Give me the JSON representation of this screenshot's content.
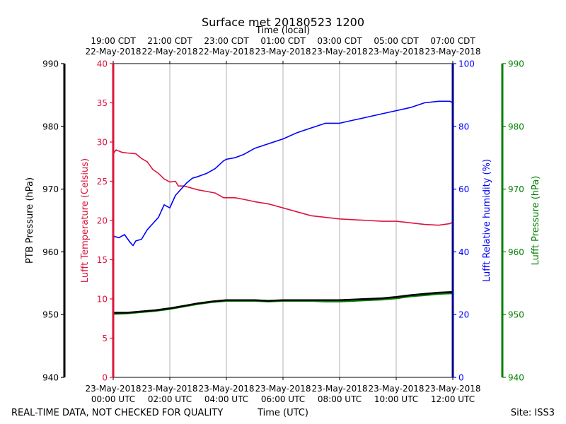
{
  "colors": {
    "temperature": "#dc143c",
    "humidity": "#0000ff",
    "ptb_pressure": "#000000",
    "lufft_pressure": "#008000",
    "grid": "#b0b0b0"
  },
  "chart_data": {
    "type": "line",
    "title": "Surface met 20180523 1200",
    "top_axis_label": "Time (local)",
    "xlabel": "Time (UTC)",
    "footer_left": "REAL-TIME DATA, NOT CHECKED FOR QUALITY",
    "footer_right": "Site: ISS3",
    "xlim_hours": [
      0,
      12
    ],
    "bottom_ticks": [
      {
        "hour": 0,
        "date": "23-May-2018",
        "time": "00:00 UTC"
      },
      {
        "hour": 2,
        "date": "23-May-2018",
        "time": "02:00 UTC"
      },
      {
        "hour": 4,
        "date": "23-May-2018",
        "time": "04:00 UTC"
      },
      {
        "hour": 6,
        "date": "23-May-2018",
        "time": "06:00 UTC"
      },
      {
        "hour": 8,
        "date": "23-May-2018",
        "time": "08:00 UTC"
      },
      {
        "hour": 10,
        "date": "23-May-2018",
        "time": "10:00 UTC"
      },
      {
        "hour": 12,
        "date": "23-May-2018",
        "time": "12:00 UTC"
      }
    ],
    "top_ticks": [
      {
        "hour": 0,
        "time": "19:00 CDT",
        "date": "22-May-2018"
      },
      {
        "hour": 2,
        "time": "21:00 CDT",
        "date": "22-May-2018"
      },
      {
        "hour": 4,
        "time": "23:00 CDT",
        "date": "22-May-2018"
      },
      {
        "hour": 6,
        "time": "01:00 CDT",
        "date": "23-May-2018"
      },
      {
        "hour": 8,
        "time": "03:00 CDT",
        "date": "23-May-2018"
      },
      {
        "hour": 10,
        "time": "05:00 CDT",
        "date": "23-May-2018"
      },
      {
        "hour": 12,
        "time": "07:00 CDT",
        "date": "23-May-2018"
      }
    ],
    "axes": {
      "ptb": {
        "label": "PTB Pressure (hPa)",
        "range": [
          940,
          990
        ],
        "ticks": [
          940,
          950,
          960,
          970,
          980,
          990
        ]
      },
      "temperature": {
        "label": "Lufft Temperature (Celsius)",
        "range": [
          0,
          40
        ],
        "ticks": [
          0,
          5,
          10,
          15,
          20,
          25,
          30,
          35,
          40
        ]
      },
      "humidity": {
        "label": "Lufft Relative humidity (%)",
        "range": [
          0,
          100
        ],
        "ticks": [
          0,
          20,
          40,
          60,
          80,
          100
        ]
      },
      "lufft_pressure": {
        "label": "Lufft Pressure (hPa)",
        "range": [
          940,
          990
        ],
        "ticks": [
          940,
          950,
          960,
          970,
          980,
          990
        ]
      }
    },
    "series": [
      {
        "name": "Lufft Temperature (Celsius)",
        "axis": "temperature",
        "x": [
          0,
          0.1,
          0.3,
          0.5,
          0.8,
          1.0,
          1.2,
          1.4,
          1.6,
          1.8,
          2.0,
          2.2,
          2.3,
          2.5,
          2.8,
          3.0,
          3.3,
          3.6,
          3.9,
          4.0,
          4.3,
          4.6,
          5.0,
          5.5,
          6.0,
          6.5,
          7.0,
          7.5,
          8.0,
          8.5,
          9.0,
          9.5,
          10.0,
          10.5,
          11.0,
          11.5,
          11.9,
          12.0
        ],
        "y": [
          28.5,
          29.0,
          28.7,
          28.6,
          28.5,
          27.9,
          27.5,
          26.5,
          26.0,
          25.3,
          24.9,
          25.0,
          24.4,
          24.4,
          24.1,
          23.9,
          23.7,
          23.5,
          22.9,
          22.9,
          22.9,
          22.7,
          22.4,
          22.1,
          21.6,
          21.1,
          20.6,
          20.4,
          20.2,
          20.1,
          20.0,
          19.9,
          19.9,
          19.7,
          19.5,
          19.4,
          19.6,
          19.8
        ]
      },
      {
        "name": "Lufft Relative humidity (%)",
        "axis": "humidity",
        "x": [
          0,
          0.2,
          0.4,
          0.6,
          0.7,
          0.8,
          1.0,
          1.2,
          1.4,
          1.6,
          1.8,
          2.0,
          2.2,
          2.4,
          2.6,
          2.8,
          3.0,
          3.3,
          3.6,
          3.9,
          4.0,
          4.3,
          4.6,
          5.0,
          5.5,
          6.0,
          6.5,
          7.0,
          7.5,
          8.0,
          8.5,
          9.0,
          9.5,
          10.0,
          10.5,
          11.0,
          11.5,
          11.9,
          12.0
        ],
        "y": [
          45,
          44.5,
          45.5,
          43,
          42,
          43.5,
          44,
          47,
          49,
          51,
          55,
          54,
          58,
          60,
          62,
          63.5,
          64,
          65,
          66.5,
          69,
          69.5,
          70,
          71,
          73,
          74.5,
          76,
          78,
          79.5,
          81,
          81,
          82,
          83,
          84,
          85,
          86,
          87.5,
          88,
          88,
          87.5
        ]
      },
      {
        "name": "PTB Pressure (hPa)",
        "axis": "ptb",
        "x": [
          0,
          0.5,
          1.0,
          1.5,
          2.0,
          2.5,
          3.0,
          3.5,
          4.0,
          4.5,
          5.0,
          5.5,
          6.0,
          6.5,
          7.0,
          7.5,
          8.0,
          8.5,
          9.0,
          9.5,
          10.0,
          10.5,
          11.0,
          11.5,
          12.0
        ],
        "y": [
          950.3,
          950.3,
          950.5,
          950.7,
          951.0,
          951.4,
          951.8,
          952.1,
          952.3,
          952.3,
          952.3,
          952.2,
          952.3,
          952.3,
          952.3,
          952.3,
          952.3,
          952.4,
          952.5,
          952.6,
          952.8,
          953.1,
          953.3,
          953.5,
          953.6
        ]
      },
      {
        "name": "Lufft Pressure (hPa)",
        "axis": "lufft_pressure",
        "x": [
          0,
          0.5,
          1.0,
          1.5,
          2.0,
          2.5,
          3.0,
          3.5,
          4.0,
          4.5,
          5.0,
          5.5,
          6.0,
          6.5,
          7.0,
          7.5,
          8.0,
          8.5,
          9.0,
          9.5,
          10.0,
          10.5,
          11.0,
          11.5,
          12.0
        ],
        "y": [
          950.1,
          950.2,
          950.4,
          950.6,
          950.9,
          951.3,
          951.7,
          952.0,
          952.2,
          952.2,
          952.2,
          952.1,
          952.2,
          952.2,
          952.2,
          952.1,
          952.1,
          952.2,
          952.3,
          952.4,
          952.6,
          952.9,
          953.1,
          953.3,
          953.4
        ]
      }
    ]
  }
}
